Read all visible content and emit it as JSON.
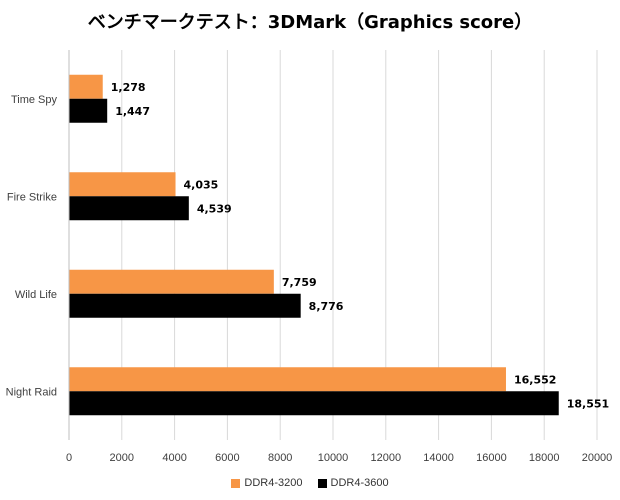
{
  "chart_data": {
    "type": "bar",
    "orientation": "horizontal",
    "title": "ベンチマークテスト：3DMark（Graphics score）",
    "categories": [
      "Time Spy",
      "Fire Strike",
      "Wild Life",
      "Night Raid"
    ],
    "series": [
      {
        "name": "DDR4-3200",
        "color": "#f79646",
        "values": [
          1278,
          4035,
          7759,
          16552
        ],
        "labels": [
          "1,278",
          "4,035",
          "7,759",
          "16,552"
        ]
      },
      {
        "name": "DDR4-3600",
        "color": "#000000",
        "values": [
          1447,
          4539,
          8776,
          18551
        ],
        "labels": [
          "1,447",
          "4,539",
          "8,776",
          "18,551"
        ]
      }
    ],
    "xlim": [
      0,
      20000
    ],
    "xticks": [
      "0",
      "2000",
      "4000",
      "6000",
      "8000",
      "10000",
      "12000",
      "14000",
      "16000",
      "18000",
      "20000"
    ],
    "grid": true,
    "legend_position": "bottom"
  }
}
